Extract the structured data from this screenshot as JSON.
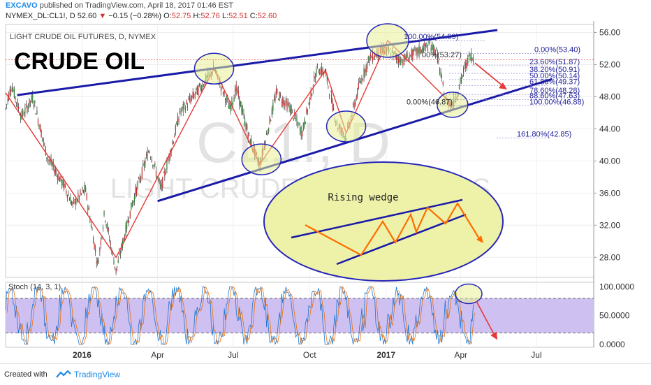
{
  "header": {
    "user": "EXCAVO",
    "published": "published on TradingView.com, April 18, 2017 01:46 EST",
    "symbol": "NYMEX_DL:CL1!, D",
    "last": "52.60",
    "change": "−0.15 (−0.28%)",
    "open_label": "O:",
    "open": "52.75",
    "high_label": "H:",
    "high": "52.76",
    "low_label": "L:",
    "low": "52.51",
    "close_label": "C:",
    "close": "52.60"
  },
  "footer": {
    "created": "Created with",
    "brand": "TradingView"
  },
  "colors": {
    "trendline": "#1a1aa8",
    "arrow": "#e53935",
    "wedge_fill": "#eef2a8",
    "stoch_band": "#cfc0f2",
    "up": "#2e7d32",
    "down": "#c62828"
  },
  "chart_data": [
    {
      "type": "candlestick",
      "title": "LIGHT CRUDE OIL FUTURES, D, NYMEX",
      "big_label": "CRUDE OIL",
      "watermark_symbol": "CL1!, D",
      "watermark_name": "LIGHT CRUDE OIL FUTURES",
      "y_ticks": [
        "56.00",
        "52.00",
        "48.00",
        "44.00",
        "40.00",
        "36.00",
        "32.00",
        "28.00"
      ],
      "ylim": [
        25.5,
        57.0
      ],
      "x_ticks": [
        "2016",
        "Apr",
        "Jul",
        "Oct",
        "2017",
        "Apr",
        "Jul"
      ],
      "current_price": 52.6,
      "price_path": [
        [
          "2015-10-01",
          46.5
        ],
        [
          "2015-10-08",
          49.5
        ],
        [
          "2015-10-20",
          45.5
        ],
        [
          "2015-11-03",
          47.9
        ],
        [
          "2015-11-20",
          40.5
        ],
        [
          "2015-12-10",
          37.0
        ],
        [
          "2015-12-21",
          34.5
        ],
        [
          "2016-01-05",
          36.5
        ],
        [
          "2016-01-20",
          27.0
        ],
        [
          "2016-01-28",
          33.5
        ],
        [
          "2016-02-11",
          26.3
        ],
        [
          "2016-03-01",
          34.5
        ],
        [
          "2016-03-22",
          41.5
        ],
        [
          "2016-04-05",
          36.5
        ],
        [
          "2016-04-28",
          46.0
        ],
        [
          "2016-05-25",
          49.5
        ],
        [
          "2016-06-08",
          51.5
        ],
        [
          "2016-06-27",
          46.5
        ],
        [
          "2016-07-05",
          49.0
        ],
        [
          "2016-07-20",
          43.0
        ],
        [
          "2016-08-02",
          39.5
        ],
        [
          "2016-08-22",
          48.5
        ],
        [
          "2016-09-08",
          46.5
        ],
        [
          "2016-09-22",
          43.5
        ],
        [
          "2016-10-10",
          51.5
        ],
        [
          "2016-10-20",
          51.0
        ],
        [
          "2016-11-03",
          44.5
        ],
        [
          "2016-11-14",
          43.0
        ],
        [
          "2016-11-30",
          49.5
        ],
        [
          "2016-12-12",
          52.8
        ],
        [
          "2016-12-28",
          53.8
        ],
        [
          "2017-01-06",
          53.5
        ],
        [
          "2017-01-20",
          52.5
        ],
        [
          "2017-02-06",
          53.5
        ],
        [
          "2017-02-23",
          54.5
        ],
        [
          "2017-03-03",
          53.5
        ],
        [
          "2017-03-08",
          50.5
        ],
        [
          "2017-03-14",
          47.5
        ],
        [
          "2017-03-22",
          47.0
        ],
        [
          "2017-03-28",
          48.5
        ],
        [
          "2017-04-04",
          51.0
        ],
        [
          "2017-04-12",
          53.3
        ],
        [
          "2017-04-17",
          52.6
        ]
      ],
      "zigzag": [
        [
          "2015-10-01",
          48.5
        ],
        [
          "2016-02-11",
          28.0
        ],
        [
          "2016-06-08",
          51.5
        ],
        [
          "2016-08-02",
          39.6
        ],
        [
          "2016-10-20",
          51.3
        ],
        [
          "2016-11-14",
          43.5
        ],
        [
          "2017-01-03",
          55.0
        ],
        [
          "2017-03-22",
          47.0
        ]
      ],
      "trendlines": [
        {
          "from": [
            "2015-10-15",
            48.2
          ],
          "to": [
            "2017-05-15",
            56.3
          ]
        },
        {
          "from": [
            "2016-04-01",
            35.0
          ],
          "to": [
            "2017-07-20",
            50.2
          ]
        }
      ],
      "fibonacci": [
        {
          "level": "100.00%",
          "value": 54.99
        },
        {
          "level": "0.00%",
          "value": 53.4
        },
        {
          "level": "23.60%",
          "value": 51.87
        },
        {
          "level": "38.20%",
          "value": 50.91
        },
        {
          "level": "50.00%",
          "value": 50.14
        },
        {
          "level": "61.80%",
          "value": 49.37
        },
        {
          "level": "78.60%",
          "value": 48.28
        },
        {
          "level": "88.60%",
          "value": 47.63
        },
        {
          "level": "100.00%",
          "value": 46.88
        },
        {
          "level": "161.80%",
          "value": 42.85
        },
        {
          "level": "0.00%",
          "value": 46.87
        },
        {
          "level": "100.00%",
          "value": 53.27
        }
      ],
      "inset_label": "Rising wedge"
    },
    {
      "type": "line",
      "title": "Stoch (14, 3, 1)",
      "y_ticks": [
        "100.0000",
        "50.0000",
        "0.0000"
      ],
      "ylim": [
        -5,
        108
      ],
      "band": [
        20,
        80
      ]
    }
  ]
}
